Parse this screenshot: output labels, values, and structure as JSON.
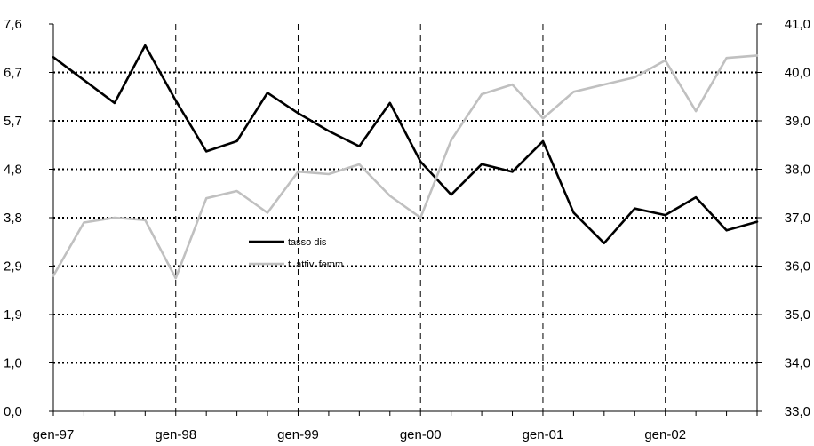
{
  "chart_data": {
    "type": "line",
    "title": "",
    "xlabel": "",
    "ylabel": "",
    "categories": [
      "gen-97",
      "",
      "",
      "",
      "gen-98",
      "",
      "",
      "",
      "gen-99",
      "",
      "",
      "",
      "gen-00",
      "",
      "",
      "",
      "gen-01",
      "",
      "",
      "",
      "gen-02",
      "",
      "",
      ""
    ],
    "x_tick_labels": [
      "gen-97",
      "gen-98",
      "gen-99",
      "gen-00",
      "gen-01",
      "gen-02"
    ],
    "y_left": {
      "lim": [
        0,
        7.6
      ],
      "tick_labels": [
        "0,0",
        "1,0",
        "1,9",
        "2,9",
        "3,8",
        "4,8",
        "5,7",
        "6,7",
        "7,6"
      ]
    },
    "y_right": {
      "lim": [
        33,
        41
      ],
      "tick_labels": [
        "33,0",
        "34,0",
        "35,0",
        "36,0",
        "37,0",
        "38,0",
        "39,0",
        "40,0",
        "41,0"
      ]
    },
    "grid": {
      "horizontal": "dotted",
      "vertical": "dashed"
    },
    "legend_position": "center-left",
    "series": [
      {
        "name": "tasso dis",
        "axis": "left",
        "color": "#000000",
        "values": [
          6.95,
          6.5,
          6.05,
          7.18,
          6.1,
          5.1,
          5.3,
          6.25,
          5.85,
          5.5,
          5.2,
          6.05,
          4.9,
          4.25,
          4.85,
          4.7,
          5.3,
          3.9,
          3.3,
          3.98,
          3.85,
          4.2,
          3.55,
          3.72
        ]
      },
      {
        "name": "t. attiv. femm.",
        "axis": "right",
        "color": "#c0c0c0",
        "values": [
          35.8,
          36.9,
          37.0,
          36.95,
          35.75,
          37.4,
          37.55,
          37.1,
          37.95,
          37.9,
          38.1,
          37.45,
          37.0,
          38.6,
          39.55,
          39.75,
          39.05,
          39.6,
          39.75,
          39.9,
          40.25,
          39.2,
          40.3,
          40.35
        ]
      }
    ]
  }
}
